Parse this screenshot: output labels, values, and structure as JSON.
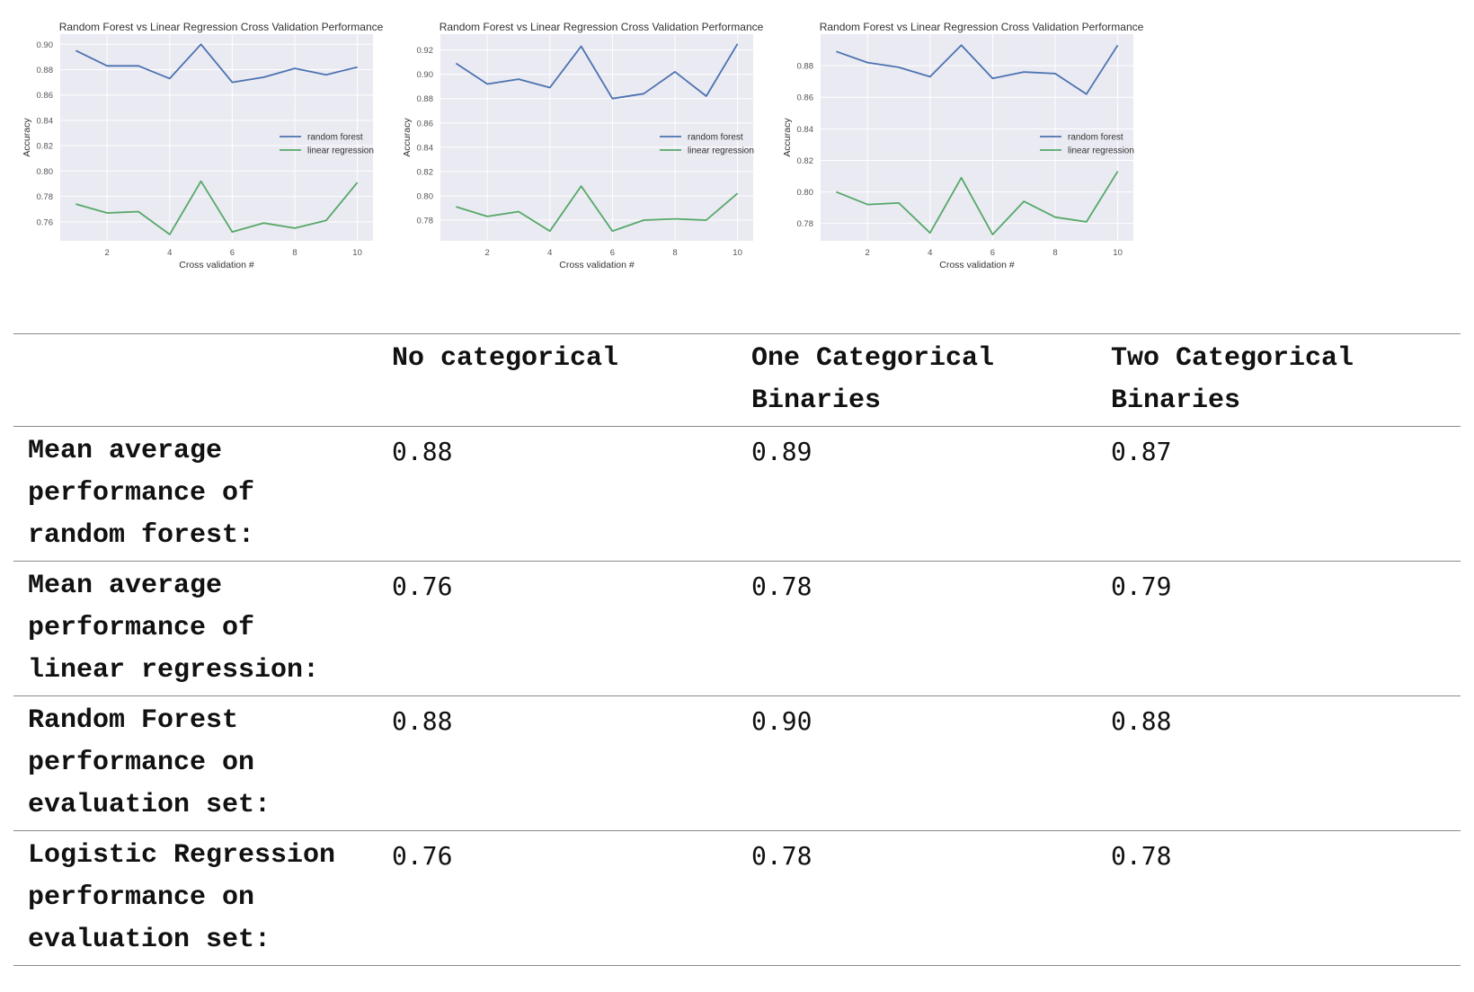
{
  "colors": {
    "rf": "#4c72b0",
    "lr": "#55a868",
    "plot_bg": "#eaeaf2",
    "grid": "#ffffff"
  },
  "chart_data": [
    {
      "type": "line",
      "title": "Random Forest vs Linear Regression Cross Validation Performance",
      "xlabel": "Cross validation #",
      "ylabel": "Accuracy",
      "x": [
        1,
        2,
        3,
        4,
        5,
        6,
        7,
        8,
        9,
        10
      ],
      "xlim": [
        0.5,
        10.5
      ],
      "ylim": [
        0.745,
        0.908
      ],
      "xticks": [
        2,
        4,
        6,
        8,
        10
      ],
      "yticks": [
        0.76,
        0.78,
        0.8,
        0.82,
        0.84,
        0.86,
        0.88,
        0.9
      ],
      "ytick_labels": [
        "0.76",
        "0.78",
        "0.80",
        "0.82",
        "0.84",
        "0.86",
        "0.88",
        "0.90"
      ],
      "legend": "center-right",
      "grid": true,
      "series": [
        {
          "name": "random forest",
          "values": [
            0.895,
            0.883,
            0.883,
            0.873,
            0.9,
            0.87,
            0.874,
            0.881,
            0.876,
            0.882
          ]
        },
        {
          "name": "linear regression",
          "values": [
            0.774,
            0.767,
            0.768,
            0.75,
            0.792,
            0.752,
            0.759,
            0.755,
            0.761,
            0.791
          ]
        }
      ]
    },
    {
      "type": "line",
      "title": "Random Forest vs Linear Regression Cross Validation Performance",
      "xlabel": "Cross validation #",
      "ylabel": "Accuracy",
      "x": [
        1,
        2,
        3,
        4,
        5,
        6,
        7,
        8,
        9,
        10
      ],
      "xlim": [
        0.5,
        10.5
      ],
      "ylim": [
        0.763,
        0.933
      ],
      "xticks": [
        2,
        4,
        6,
        8,
        10
      ],
      "yticks": [
        0.78,
        0.8,
        0.82,
        0.84,
        0.86,
        0.88,
        0.9,
        0.92
      ],
      "ytick_labels": [
        "0.78",
        "0.80",
        "0.82",
        "0.84",
        "0.86",
        "0.88",
        "0.90",
        "0.92"
      ],
      "legend": "center-right",
      "grid": true,
      "series": [
        {
          "name": "random forest",
          "values": [
            0.909,
            0.892,
            0.896,
            0.889,
            0.923,
            0.88,
            0.884,
            0.902,
            0.882,
            0.925
          ]
        },
        {
          "name": "linear regression",
          "values": [
            0.791,
            0.783,
            0.787,
            0.771,
            0.808,
            0.771,
            0.78,
            0.781,
            0.78,
            0.802
          ]
        }
      ]
    },
    {
      "type": "line",
      "title": "Random Forest vs Linear Regression Cross Validation Performance",
      "xlabel": "Cross validation #",
      "ylabel": "Accuracy",
      "x": [
        1,
        2,
        3,
        4,
        5,
        6,
        7,
        8,
        9,
        10
      ],
      "xlim": [
        0.5,
        10.5
      ],
      "ylim": [
        0.769,
        0.9
      ],
      "xticks": [
        2,
        4,
        6,
        8,
        10
      ],
      "yticks": [
        0.78,
        0.8,
        0.82,
        0.84,
        0.86,
        0.88
      ],
      "ytick_labels": [
        "0.78",
        "0.80",
        "0.82",
        "0.84",
        "0.86",
        "0.88"
      ],
      "legend": "center-right",
      "grid": true,
      "series": [
        {
          "name": "random forest",
          "values": [
            0.889,
            0.882,
            0.879,
            0.873,
            0.893,
            0.872,
            0.876,
            0.875,
            0.862,
            0.893
          ]
        },
        {
          "name": "linear regression",
          "values": [
            0.8,
            0.792,
            0.793,
            0.774,
            0.809,
            0.773,
            0.794,
            0.784,
            0.781,
            0.813
          ]
        }
      ]
    }
  ],
  "table": {
    "headers": [
      "",
      "No categorical",
      "One Categorical Binaries",
      "Two Categorical Binaries"
    ],
    "rows": [
      {
        "label": "Mean average performance of random forest:",
        "values": [
          "0.88",
          "0.89",
          "0.87"
        ]
      },
      {
        "label": "Mean average performance of linear regression:",
        "values": [
          "0.76",
          "0.78",
          "0.79"
        ]
      },
      {
        "label": "Random Forest performance on evaluation set:",
        "values": [
          "0.88",
          "0.90",
          "0.88"
        ]
      },
      {
        "label": "Logistic Regression performance on evaluation set:",
        "values": [
          "0.76",
          "0.78",
          "0.78"
        ]
      }
    ]
  }
}
